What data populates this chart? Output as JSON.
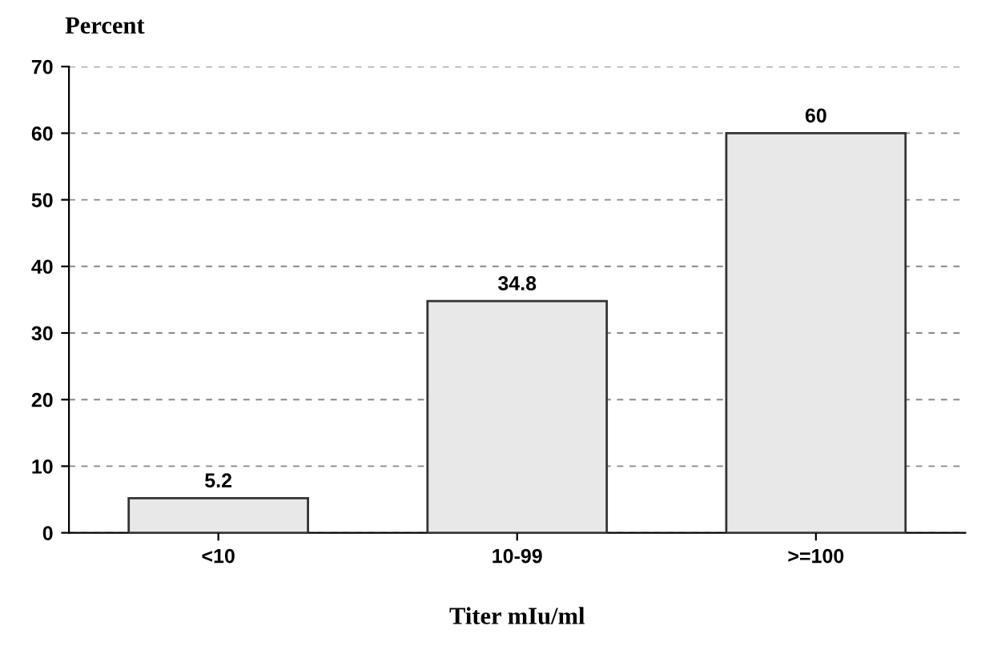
{
  "chart_data": {
    "type": "bar",
    "ylabel": "Percent",
    "xlabel": "Titer mIu/ml",
    "categories": [
      "<10",
      "10-99",
      ">=100"
    ],
    "values": [
      5.2,
      34.8,
      60
    ],
    "color": "#e8e8e8",
    "ylim": [
      0,
      70
    ],
    "yticks": [
      0,
      10,
      20,
      30,
      40,
      50,
      60,
      70
    ],
    "grid": "y",
    "data_labels": true
  }
}
